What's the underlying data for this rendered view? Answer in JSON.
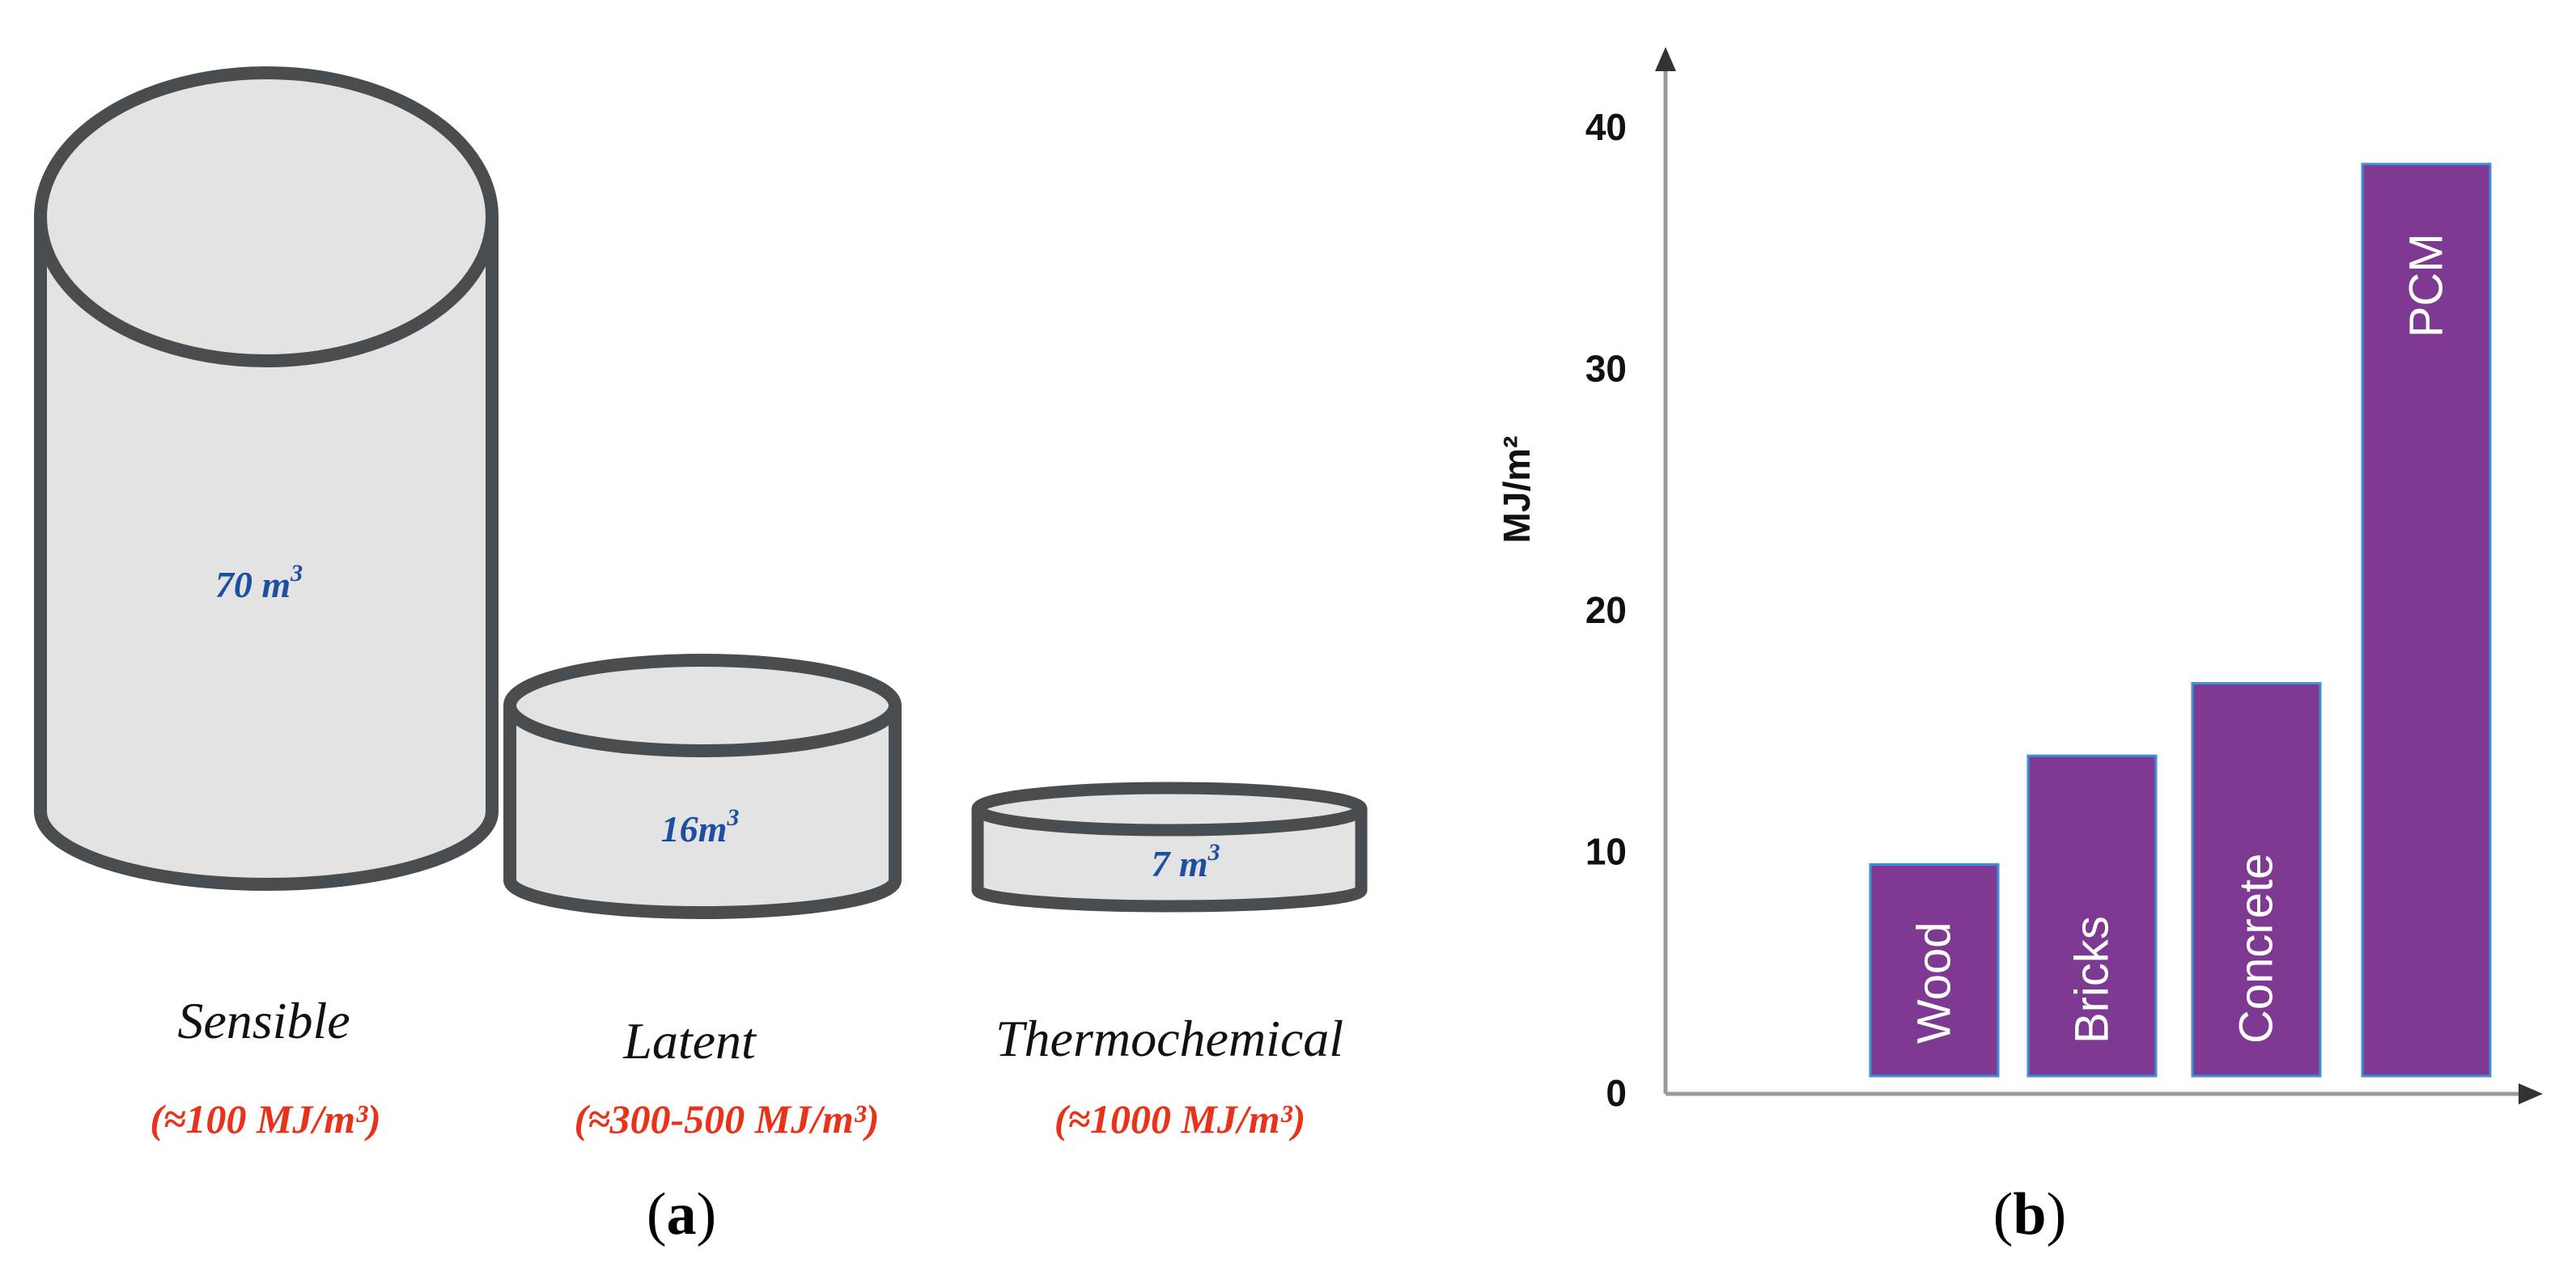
{
  "panel_a": {
    "tanks": [
      {
        "name": "Sensible",
        "volume": "70 m",
        "volume_sup": "3",
        "density": "(≈100 MJ/m³)"
      },
      {
        "name": "Latent",
        "volume": "16m",
        "volume_sup": "3",
        "density": "(≈300-500 MJ/m³)"
      },
      {
        "name": "Thermochemical",
        "volume": "7 m",
        "volume_sup": "3",
        "density": "(≈1000 MJ/m³)"
      }
    ],
    "colors": {
      "tank_fill": "#e3e3e3",
      "tank_stroke": "#4a4d4f",
      "volume_text": "#1c4fa0",
      "density_text": "#e8331b"
    }
  },
  "panel_labels": {
    "a": {
      "open": "(",
      "letter": "a",
      "close": ")"
    },
    "b": {
      "open": "(",
      "letter": "b",
      "close": ")"
    }
  },
  "chart_data": {
    "type": "bar",
    "categories": [
      "Wood",
      "Bricks",
      "Concrete",
      "PCM"
    ],
    "values": [
      9.5,
      14,
      17,
      38.5
    ],
    "xlabel": "",
    "ylabel": "MJ/m²",
    "ylim": [
      0,
      42
    ],
    "yticks": [
      0,
      10,
      20,
      30,
      40
    ],
    "grid": false,
    "bar_color": "#7e3a92",
    "bar_edge_color": "#3d8fd6"
  }
}
